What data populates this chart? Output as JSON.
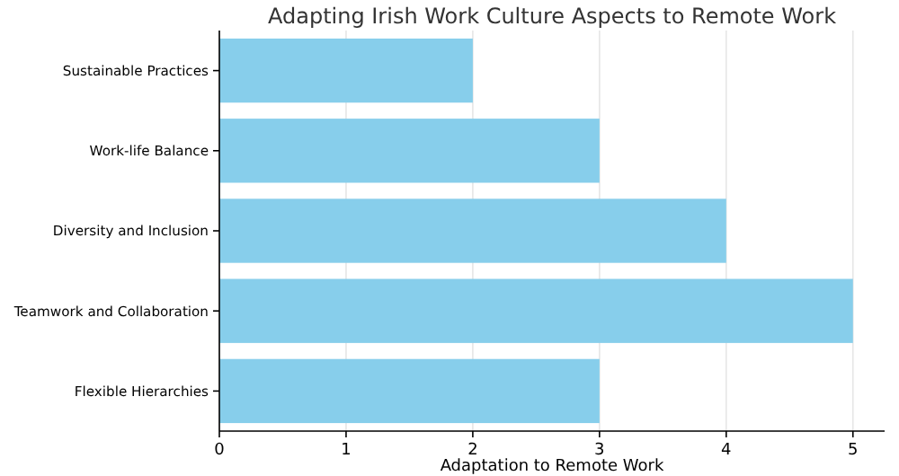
{
  "chart_data": {
    "type": "bar",
    "orientation": "horizontal",
    "title": "Adapting Irish Work Culture Aspects to Remote Work",
    "xlabel": "Adaptation to Remote Work",
    "categories": [
      "Sustainable Practices",
      "Work-life Balance",
      "Diversity and Inclusion",
      "Teamwork and Collaboration",
      "Flexible Hierarchies"
    ],
    "values": [
      2,
      3,
      4,
      5,
      3
    ],
    "color": "#87ceeb",
    "xlim": [
      0,
      5.25
    ],
    "xticks": [
      0,
      1,
      2,
      3,
      4,
      5
    ],
    "grid": "x"
  }
}
